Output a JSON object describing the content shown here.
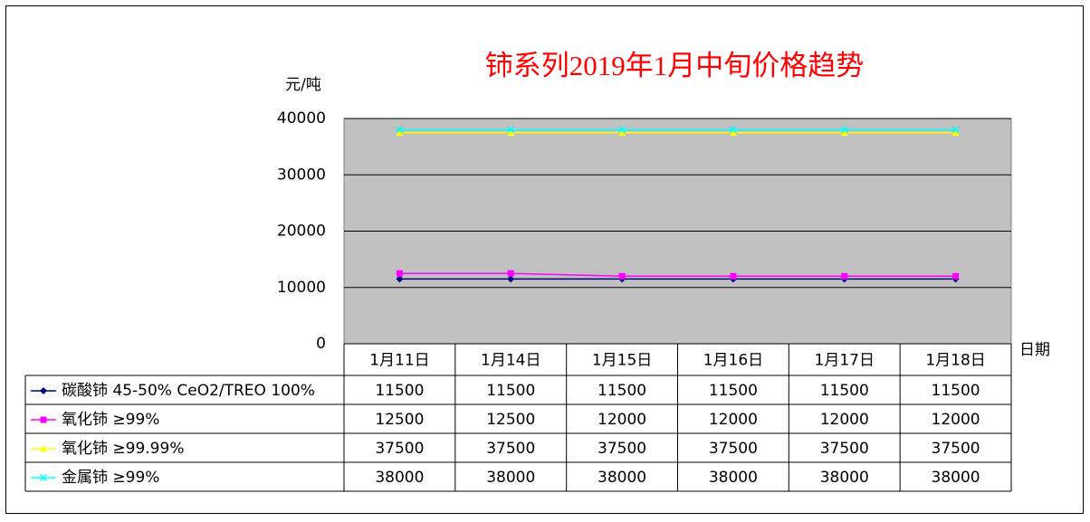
{
  "chart_data": {
    "type": "line",
    "title": "铈系列2019年1月中旬价格趋势",
    "y_label": "元/吨",
    "x_label": "日期",
    "categories": [
      "1月11日",
      "1月14日",
      "1月15日",
      "1月16日",
      "1月17日",
      "1月18日"
    ],
    "series": [
      {
        "name": "碳酸铈 45-50% CeO2/TREO 100%",
        "color": "#000080",
        "marker": "diamond",
        "values": [
          11500,
          11500,
          11500,
          11500,
          11500,
          11500
        ]
      },
      {
        "name": "氧化铈 ≥99%",
        "color": "#ff00ff",
        "marker": "square",
        "values": [
          12500,
          12500,
          12000,
          12000,
          12000,
          12000
        ]
      },
      {
        "name": "氧化铈 ≥99.99%",
        "color": "#ffff00",
        "marker": "triangle",
        "values": [
          37500,
          37500,
          37500,
          37500,
          37500,
          37500
        ]
      },
      {
        "name": "金属铈 ≥99%",
        "color": "#00ffff",
        "marker": "x",
        "values": [
          38000,
          38000,
          38000,
          38000,
          38000,
          38000
        ]
      }
    ],
    "ylim": [
      0,
      40000
    ],
    "yticks": [
      0,
      10000,
      20000,
      30000,
      40000
    ],
    "grid": true,
    "plot_background": "#c0c0c0"
  }
}
